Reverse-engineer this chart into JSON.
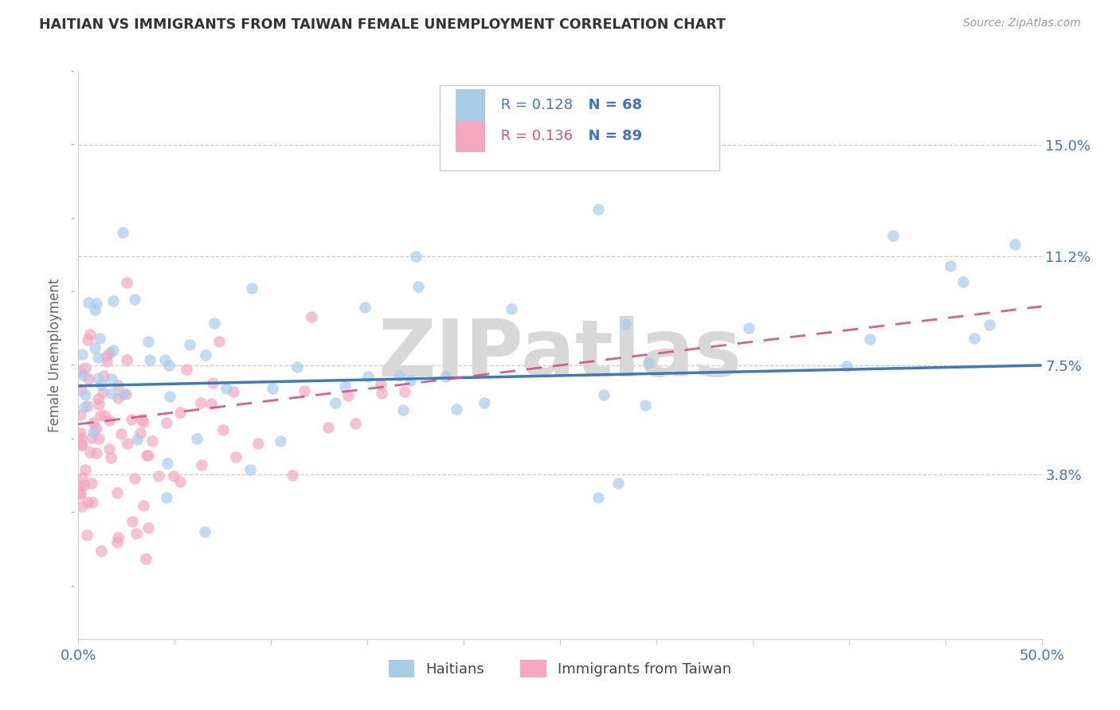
{
  "title": "HAITIAN VS IMMIGRANTS FROM TAIWAN FEMALE UNEMPLOYMENT CORRELATION CHART",
  "source": "Source: ZipAtlas.com",
  "ylabel": "Female Unemployment",
  "xlim_min": 0.0,
  "xlim_max": 0.5,
  "ylim_min": -0.018,
  "ylim_max": 0.175,
  "xticks": [
    0.0,
    0.05,
    0.1,
    0.15,
    0.2,
    0.25,
    0.3,
    0.35,
    0.4,
    0.45,
    0.5
  ],
  "ytick_positions": [
    0.038,
    0.075,
    0.112,
    0.15
  ],
  "ytick_labels": [
    "3.8%",
    "7.5%",
    "11.2%",
    "15.0%"
  ],
  "legend_label1": "Haitians",
  "legend_label2": "Immigrants from Taiwan",
  "legend_R1": "R = 0.128",
  "legend_N1": "N = 68",
  "legend_R2": "R = 0.136",
  "legend_N2": "N = 89",
  "color_blue": "#a8cce8",
  "color_pink": "#f4a7be",
  "color_blue_line": "#3a7abf",
  "color_pink_line": "#d45080",
  "color_axis_ticks": "#4472c4",
  "color_grid": "#cccccc",
  "color_title": "#333333",
  "color_source": "#999999",
  "watermark_text": "ZIPatlas",
  "watermark_color": "#d8d8d8",
  "blue_line_x0": 0.0,
  "blue_line_y0": 0.068,
  "blue_line_x1": 0.5,
  "blue_line_y1": 0.075,
  "pink_line_x0": 0.0,
  "pink_line_y0": 0.055,
  "pink_line_x1": 0.5,
  "pink_line_y1": 0.095
}
